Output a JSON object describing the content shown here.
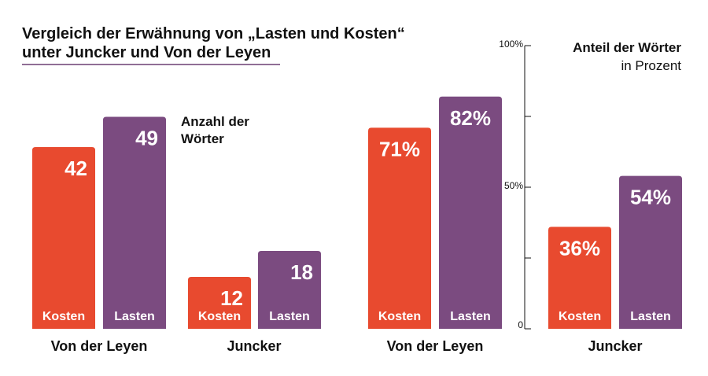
{
  "title_line1": "Vergleich der Erwähnung von „Lasten und Kosten“",
  "title_line2": "unter Juncker und Von der Leyen",
  "colors": {
    "kosten": "#e84a2f",
    "lasten": "#7b4b80",
    "text": "#111111",
    "rule": "#6b3f72"
  },
  "chart_data": [
    {
      "type": "bar",
      "annotation": "Anzahl der Wörter",
      "categories": [
        "Von der Leyen",
        "Juncker"
      ],
      "series": [
        {
          "name": "Kosten",
          "values": [
            42,
            12
          ],
          "value_labels": [
            "42",
            "12"
          ]
        },
        {
          "name": "Lasten",
          "values": [
            49,
            18
          ],
          "value_labels": [
            "49",
            "18"
          ]
        }
      ]
    },
    {
      "type": "bar",
      "annotation_line1": "Anteil der Wörter",
      "annotation_line2": "in Prozent",
      "categories": [
        "Von der Leyen",
        "Juncker"
      ],
      "ylim": [
        0,
        100
      ],
      "yticks": [
        "100%",
        "50%",
        "0"
      ],
      "series": [
        {
          "name": "Kosten",
          "values": [
            71,
            36
          ],
          "value_labels": [
            "71%",
            "36%"
          ]
        },
        {
          "name": "Lasten",
          "values": [
            82,
            54
          ],
          "value_labels": [
            "82%",
            "54%"
          ]
        }
      ]
    }
  ]
}
